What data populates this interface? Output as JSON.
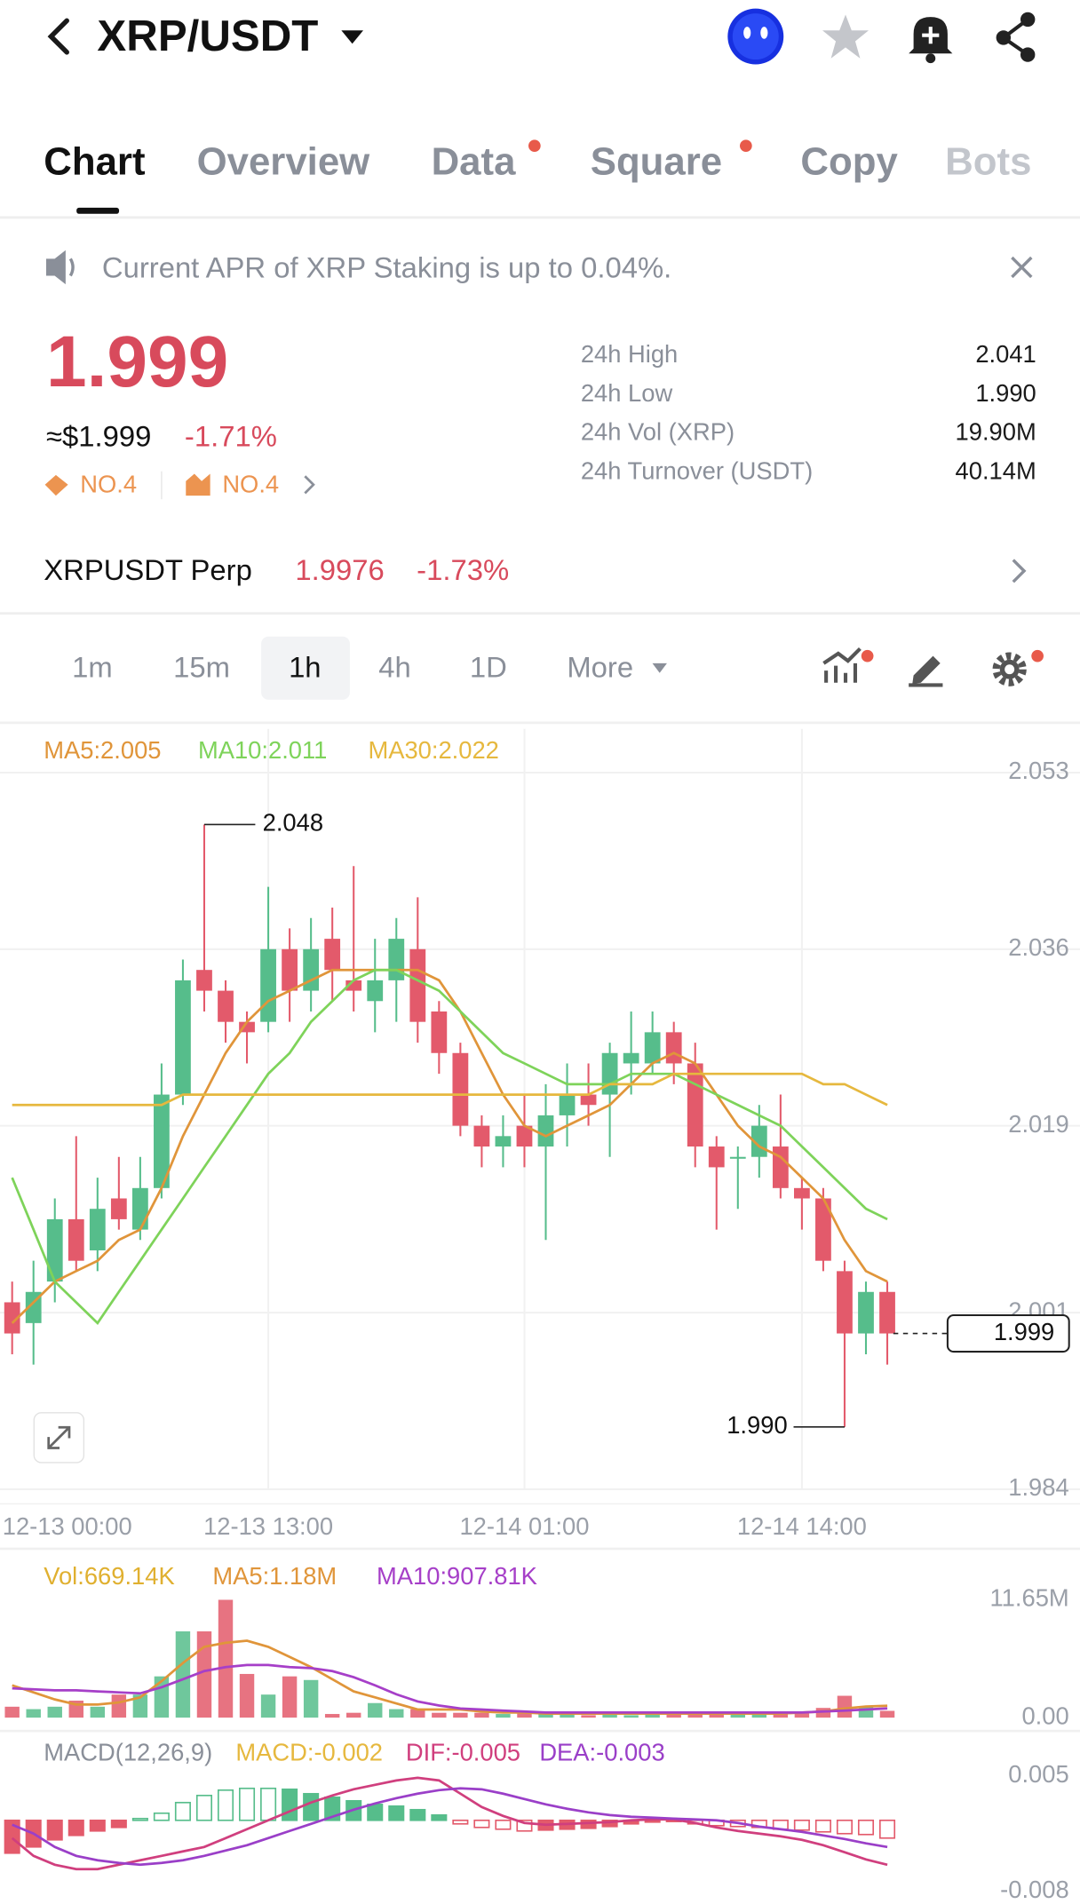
{
  "header": {
    "title": "XRP/USDT"
  },
  "tabs": [
    "Chart",
    "Overview",
    "Data",
    "Square",
    "Copy",
    "Bots"
  ],
  "announcement": "Current APR of XRP Staking is up to 0.04%.",
  "ticker": {
    "price": "1.999",
    "usd_price": "≈$1.999",
    "change": "-1.71%",
    "ranks": [
      "NO.4",
      "NO.4"
    ],
    "stats": [
      {
        "label": "24h High",
        "value": "2.041"
      },
      {
        "label": "24h Low",
        "value": "1.990"
      },
      {
        "label": "24h Vol (XRP)",
        "value": "19.90M"
      },
      {
        "label": "24h Turnover (USDT)",
        "value": "40.14M"
      }
    ]
  },
  "perp": {
    "name": "XRPUSDT Perp",
    "price": "1.9976",
    "change": "-1.73%"
  },
  "intervals": [
    "1m",
    "15m",
    "1h",
    "4h",
    "1D",
    "More"
  ],
  "chart_data": [
    {
      "type": "candlestick",
      "up_color": "#56bd8b",
      "down_color": "#e35a6b",
      "grid": true,
      "ylim": [
        1.984,
        2.053
      ],
      "yticks": [
        2.053,
        2.036,
        2.019,
        2.001,
        1.984
      ],
      "xticks": [
        {
          "value": -1,
          "label": "12-13 00:00"
        },
        {
          "value": 12,
          "label": "12-13 13:00"
        },
        {
          "value": 24,
          "label": "12-14 01:00"
        },
        {
          "value": 37,
          "label": "12-14 14:00"
        }
      ],
      "open": [
        2.002,
        2.0,
        2.004,
        2.01,
        2.007,
        2.012,
        2.009,
        2.013,
        2.022,
        2.034,
        2.032,
        2.029,
        2.029,
        2.036,
        2.032,
        2.037,
        2.033,
        2.031,
        2.033,
        2.036,
        2.03,
        2.026,
        2.019,
        2.017,
        2.019,
        2.017,
        2.02,
        2.022,
        2.022,
        2.025,
        2.025,
        2.028,
        2.025,
        2.017,
        2.016,
        2.016,
        2.017,
        2.013,
        2.012,
        2.005,
        1.999,
        2.003
      ],
      "high": [
        2.004,
        2.006,
        2.012,
        2.018,
        2.014,
        2.016,
        2.016,
        2.025,
        2.035,
        2.048,
        2.033,
        2.03,
        2.042,
        2.038,
        2.039,
        2.04,
        2.044,
        2.037,
        2.039,
        2.041,
        2.031,
        2.027,
        2.02,
        2.02,
        2.022,
        2.023,
        2.025,
        2.025,
        2.027,
        2.03,
        2.03,
        2.029,
        2.027,
        2.018,
        2.017,
        2.021,
        2.022,
        2.014,
        2.013,
        2.006,
        2.004,
        2.004
      ],
      "low": [
        1.997,
        1.996,
        2.002,
        2.005,
        2.005,
        2.009,
        2.008,
        2.012,
        2.021,
        2.03,
        2.027,
        2.025,
        2.028,
        2.029,
        2.03,
        2.031,
        2.03,
        2.028,
        2.029,
        2.027,
        2.024,
        2.018,
        2.015,
        2.015,
        2.015,
        2.008,
        2.017,
        2.019,
        2.016,
        2.022,
        2.024,
        2.023,
        2.015,
        2.009,
        2.011,
        2.014,
        2.012,
        2.009,
        2.005,
        1.99,
        1.997,
        1.996
      ],
      "close": [
        1.999,
        2.003,
        2.01,
        2.006,
        2.011,
        2.01,
        2.013,
        2.022,
        2.033,
        2.032,
        2.029,
        2.028,
        2.036,
        2.032,
        2.036,
        2.034,
        2.032,
        2.033,
        2.037,
        2.029,
        2.026,
        2.019,
        2.017,
        2.018,
        2.017,
        2.02,
        2.022,
        2.021,
        2.026,
        2.026,
        2.028,
        2.025,
        2.017,
        2.015,
        2.016,
        2.019,
        2.013,
        2.012,
        2.006,
        1.999,
        2.003,
        1.999
      ],
      "series": [
        {
          "name": "MA5:2.005",
          "color": "#e0953a",
          "values": [
            2.0,
            2.002,
            2.004,
            2.005,
            2.006,
            2.008,
            2.009,
            2.013,
            2.018,
            2.022,
            2.026,
            2.029,
            2.031,
            2.032,
            2.033,
            2.034,
            2.034,
            2.034,
            2.034,
            2.034,
            2.033,
            2.03,
            2.026,
            2.022,
            2.019,
            2.018,
            2.019,
            2.02,
            2.021,
            2.023,
            2.025,
            2.026,
            2.025,
            2.022,
            2.019,
            2.017,
            2.016,
            2.014,
            2.012,
            2.008,
            2.005,
            2.004
          ]
        },
        {
          "name": "MA10:2.011",
          "color": "#7ed35a",
          "values": [
            2.014,
            2.009,
            2.004,
            2.002,
            2.0,
            2.003,
            2.006,
            2.009,
            2.012,
            2.015,
            2.018,
            2.021,
            2.024,
            2.026,
            2.029,
            2.031,
            2.033,
            2.034,
            2.034,
            2.033,
            2.032,
            2.03,
            2.028,
            2.026,
            2.025,
            2.024,
            2.023,
            2.023,
            2.023,
            2.024,
            2.024,
            2.024,
            2.023,
            2.022,
            2.021,
            2.02,
            2.019,
            2.017,
            2.015,
            2.013,
            2.011,
            2.01
          ]
        },
        {
          "name": "MA30:2.022",
          "color": "#e6b83e",
          "values": [
            2.021,
            2.021,
            2.021,
            2.021,
            2.021,
            2.021,
            2.021,
            2.021,
            2.022,
            2.022,
            2.022,
            2.022,
            2.022,
            2.022,
            2.022,
            2.022,
            2.022,
            2.022,
            2.022,
            2.022,
            2.022,
            2.022,
            2.022,
            2.022,
            2.022,
            2.022,
            2.022,
            2.022,
            2.023,
            2.023,
            2.023,
            2.024,
            2.024,
            2.024,
            2.024,
            2.024,
            2.024,
            2.024,
            2.023,
            2.023,
            2.022,
            2.021
          ]
        }
      ],
      "high_label": {
        "value": 2.048,
        "label": "2.048"
      },
      "low_label": {
        "value": 1.99,
        "label": "1.990"
      },
      "last_price": 1.999
    },
    {
      "type": "bar",
      "ylim": [
        0,
        11.65
      ],
      "yticks": [
        {
          "value": 11.65,
          "label": "11.65M"
        },
        {
          "value": 0,
          "label": "0.00"
        }
      ],
      "series": [
        {
          "name": "Vol:669.14K",
          "color": "#e0b030",
          "values": [
            1.08,
            0.84,
            1.08,
            1.68,
            1.08,
            2.28,
            2.28,
            4.08,
            8.53,
            8.53,
            11.65,
            4.32,
            2.28,
            4.08,
            3.72,
            0.36,
            0.48,
            1.44,
            0.84,
            0.84,
            0.48,
            0.48,
            0.48,
            0.36,
            0.48,
            0.36,
            0.48,
            0.24,
            0.6,
            0.24,
            0.36,
            0.48,
            0.48,
            0.48,
            0.36,
            0.36,
            0.36,
            0.48,
            0.96,
            2.16,
            1.08,
            0.67
          ]
        },
        {
          "name": "MA5:1.18M",
          "color": "#e0953a",
          "values": [
            3.2,
            2.5,
            1.8,
            1.3,
            1.3,
            1.5,
            2.0,
            3.6,
            5.4,
            7.0,
            7.4,
            7.6,
            7.0,
            6.0,
            5.0,
            3.8,
            2.6,
            2.0,
            1.4,
            0.8,
            0.8,
            0.8,
            0.6,
            0.5,
            0.5,
            0.4,
            0.4,
            0.4,
            0.4,
            0.4,
            0.4,
            0.4,
            0.4,
            0.4,
            0.4,
            0.4,
            0.4,
            0.5,
            0.6,
            0.9,
            1.1,
            1.18
          ]
        },
        {
          "name": "MA10:907.81K",
          "color": "#a63fc8",
          "values": [
            2.9,
            2.8,
            2.7,
            2.7,
            2.6,
            2.5,
            2.4,
            3.0,
            3.8,
            4.6,
            5.0,
            5.2,
            5.2,
            5.0,
            4.9,
            4.6,
            4.0,
            3.2,
            2.3,
            1.6,
            1.2,
            0.9,
            0.8,
            0.7,
            0.6,
            0.5,
            0.5,
            0.5,
            0.5,
            0.5,
            0.5,
            0.5,
            0.5,
            0.5,
            0.5,
            0.5,
            0.5,
            0.5,
            0.6,
            0.7,
            0.8,
            0.91
          ]
        }
      ]
    },
    {
      "type": "macd",
      "title": "MACD(12,26,9)",
      "ylim": [
        -0.008,
        0.005
      ],
      "yticks": [
        0.005,
        -0.008
      ],
      "series": [
        {
          "name": "MACD:-0.002",
          "color": "#e6b83e",
          "values": [
            -0.0037,
            -0.003,
            -0.0022,
            -0.0017,
            -0.0012,
            -0.0008,
            0.0002,
            0.0008,
            0.002,
            0.0028,
            0.0034,
            0.0036,
            0.0036,
            0.0035,
            0.003,
            0.0026,
            0.0022,
            0.0018,
            0.0016,
            0.0012,
            0.0006,
            -0.0004,
            -0.0008,
            -0.001,
            -0.0012,
            -0.0011,
            -0.001,
            -0.0009,
            -0.0007,
            -0.0004,
            -0.0002,
            -0.0001,
            -0.0004,
            -0.0006,
            -0.0007,
            -0.0008,
            -0.001,
            -0.0011,
            -0.0013,
            -0.0015,
            -0.0016,
            -0.002
          ]
        },
        {
          "name": "DIF:-0.005",
          "color": "#d03f7e",
          "values": [
            -0.002,
            -0.004,
            -0.005,
            -0.0055,
            -0.0055,
            -0.005,
            -0.0045,
            -0.004,
            -0.0035,
            -0.003,
            -0.002,
            -0.001,
            0.0,
            0.001,
            0.002,
            0.0028,
            0.0035,
            0.004,
            0.0045,
            0.0048,
            0.0045,
            0.003,
            0.0015,
            0.0005,
            -0.0003,
            -0.0005,
            -0.0004,
            -0.0003,
            -0.0002,
            0.0,
            0.0001,
            0.0001,
            -0.0003,
            -0.0008,
            -0.0012,
            -0.0015,
            -0.0018,
            -0.0022,
            -0.0028,
            -0.0036,
            -0.0044,
            -0.005
          ]
        },
        {
          "name": "DEA:-0.003",
          "color": "#9a3fc8",
          "values": [
            -0.0005,
            -0.0015,
            -0.003,
            -0.004,
            -0.0045,
            -0.0048,
            -0.005,
            -0.0048,
            -0.0045,
            -0.004,
            -0.0034,
            -0.0028,
            -0.002,
            -0.0012,
            -0.0004,
            0.0004,
            0.0012,
            0.0019,
            0.0025,
            0.003,
            0.0034,
            0.0036,
            0.0035,
            0.003,
            0.0024,
            0.0018,
            0.0013,
            0.0009,
            0.0006,
            0.0004,
            0.0003,
            0.0002,
            0.0001,
            0.0,
            -0.0003,
            -0.0007,
            -0.001,
            -0.0013,
            -0.0017,
            -0.0021,
            -0.0026,
            -0.003
          ]
        }
      ]
    }
  ]
}
